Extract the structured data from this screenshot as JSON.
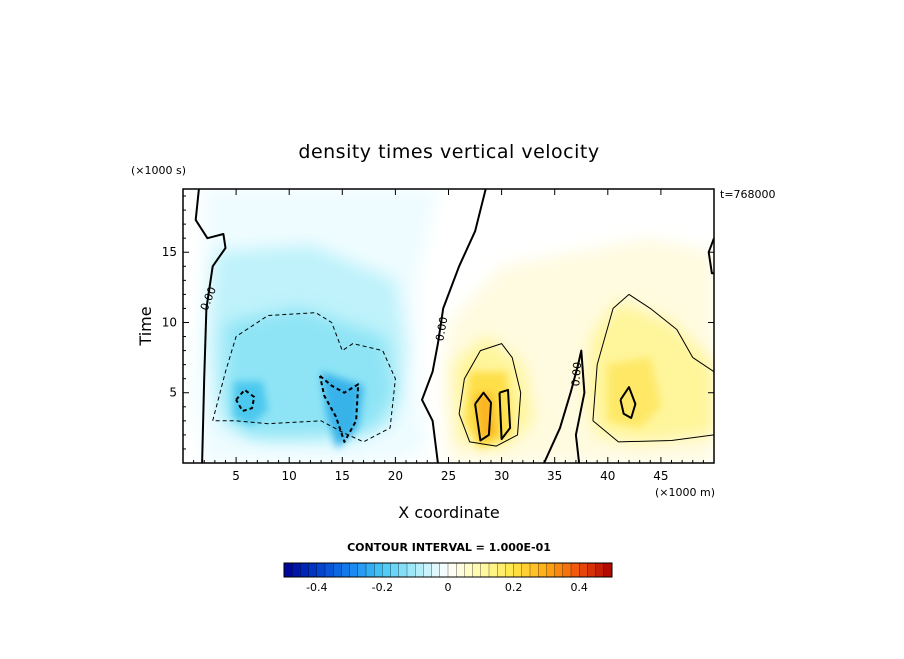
{
  "chart_data": {
    "type": "heatmap",
    "title": "density times vertical velocity",
    "xlabel": "X coordinate",
    "ylabel": "Time",
    "x_scale_label": "(×1000 m)",
    "y_scale_label": "(×1000 s)",
    "time_label": "t=768000",
    "xlim": [
      0,
      50
    ],
    "ylim": [
      0,
      19.5
    ],
    "x_ticks": [
      5,
      10,
      15,
      20,
      25,
      30,
      35,
      40,
      45
    ],
    "y_ticks": [
      5,
      10,
      15
    ],
    "contour_interval_label": "CONTOUR INTERVAL = 1.000E-01",
    "contour_labels": [
      "0.00",
      "0.00",
      "0.00"
    ],
    "colorbar": {
      "min": -0.5,
      "max": 0.5,
      "ticks": [
        "-0.4",
        "-0.2",
        "0",
        "0.2",
        "0.4"
      ],
      "tick_values": [
        -0.4,
        -0.2,
        0,
        0.2,
        0.4
      ]
    },
    "regions": [
      {
        "name": "negative-lobe-left",
        "x": 6,
        "y": 4.3,
        "peak": -0.2
      },
      {
        "name": "negative-lobe-center",
        "x": 15,
        "y": 4.0,
        "peak": -0.3
      },
      {
        "name": "positive-lobe-center",
        "x": 29,
        "y": 3.3,
        "peak": 0.25
      },
      {
        "name": "positive-lobe-right",
        "x": 42,
        "y": 4.3,
        "peak": 0.15
      }
    ]
  }
}
